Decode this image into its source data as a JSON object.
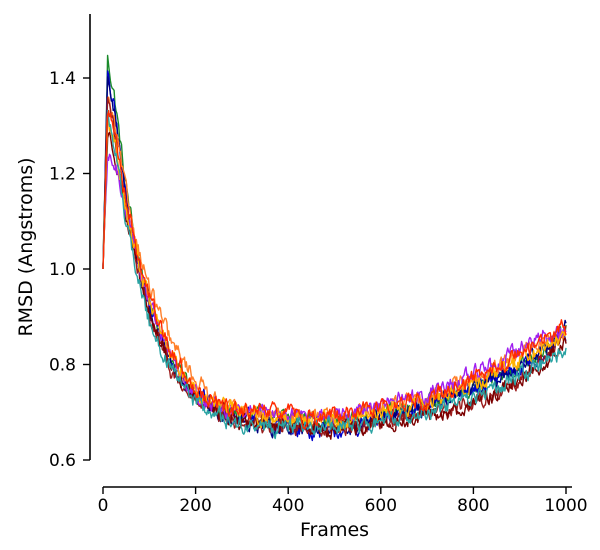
{
  "chart_data": {
    "type": "line",
    "title": "",
    "xlabel": "Frames",
    "ylabel": "RMSD (Angstroms)",
    "xlim": [
      0,
      1000
    ],
    "ylim": [
      0.6,
      1.54
    ],
    "xticks": [
      0,
      200,
      400,
      600,
      800,
      1000
    ],
    "xtick_labels": [
      "0",
      "200",
      "400",
      "600",
      "800",
      "1000"
    ],
    "yticks": [
      0.6,
      0.8,
      1.0,
      1.2,
      1.4
    ],
    "ytick_labels": [
      "0.6",
      "0.8",
      "1.0",
      "1.2",
      "1.4"
    ],
    "grid": false,
    "legend": "none",
    "x": [
      0,
      10,
      25,
      50,
      75,
      100,
      150,
      200,
      250,
      300,
      350,
      400,
      450,
      500,
      550,
      600,
      650,
      700,
      750,
      800,
      850,
      900,
      950,
      1000
    ],
    "series": [
      {
        "color": "#1a8a2a",
        "values": [
          1.0,
          1.44,
          1.36,
          1.17,
          1.03,
          0.93,
          0.81,
          0.74,
          0.7,
          0.69,
          0.69,
          0.69,
          0.69,
          0.68,
          0.69,
          0.7,
          0.71,
          0.72,
          0.73,
          0.75,
          0.77,
          0.8,
          0.83,
          0.87
        ]
      },
      {
        "color": "#0000cc",
        "values": [
          1.0,
          1.4,
          1.33,
          1.15,
          1.02,
          0.92,
          0.8,
          0.74,
          0.71,
          0.69,
          0.68,
          0.67,
          0.66,
          0.66,
          0.67,
          0.68,
          0.7,
          0.71,
          0.73,
          0.75,
          0.77,
          0.79,
          0.82,
          0.86
        ]
      },
      {
        "color": "#000080",
        "values": [
          1.0,
          1.41,
          1.32,
          1.14,
          1.01,
          0.91,
          0.79,
          0.73,
          0.7,
          0.68,
          0.67,
          0.67,
          0.67,
          0.66,
          0.67,
          0.69,
          0.7,
          0.71,
          0.73,
          0.75,
          0.77,
          0.8,
          0.83,
          0.88
        ]
      },
      {
        "color": "#ff7f2a",
        "values": [
          1.0,
          1.36,
          1.3,
          1.16,
          1.05,
          0.96,
          0.84,
          0.77,
          0.72,
          0.7,
          0.69,
          0.69,
          0.69,
          0.69,
          0.7,
          0.71,
          0.72,
          0.73,
          0.75,
          0.77,
          0.79,
          0.82,
          0.85,
          0.87
        ]
      },
      {
        "color": "#9b1c1c",
        "values": [
          1.0,
          1.37,
          1.28,
          1.12,
          1.0,
          0.9,
          0.78,
          0.72,
          0.69,
          0.68,
          0.67,
          0.67,
          0.67,
          0.67,
          0.67,
          0.68,
          0.69,
          0.7,
          0.71,
          0.72,
          0.74,
          0.77,
          0.81,
          0.86
        ]
      },
      {
        "color": "#7b0000",
        "values": [
          1.0,
          1.28,
          1.25,
          1.11,
          0.99,
          0.9,
          0.79,
          0.73,
          0.7,
          0.68,
          0.68,
          0.67,
          0.67,
          0.66,
          0.67,
          0.67,
          0.68,
          0.69,
          0.7,
          0.72,
          0.74,
          0.77,
          0.8,
          0.85
        ]
      },
      {
        "color": "#a020f0",
        "values": [
          1.0,
          1.23,
          1.22,
          1.13,
          1.02,
          0.93,
          0.81,
          0.74,
          0.71,
          0.7,
          0.7,
          0.7,
          0.69,
          0.69,
          0.7,
          0.71,
          0.73,
          0.74,
          0.76,
          0.78,
          0.8,
          0.83,
          0.86,
          0.87
        ]
      },
      {
        "color": "#ffb300",
        "values": [
          1.0,
          1.3,
          1.27,
          1.13,
          1.02,
          0.93,
          0.81,
          0.75,
          0.71,
          0.7,
          0.69,
          0.69,
          0.69,
          0.68,
          0.69,
          0.7,
          0.71,
          0.72,
          0.74,
          0.76,
          0.78,
          0.81,
          0.84,
          0.86
        ]
      },
      {
        "color": "#2aa3a3",
        "values": [
          1.0,
          1.32,
          1.26,
          1.1,
          0.98,
          0.89,
          0.78,
          0.72,
          0.69,
          0.67,
          0.67,
          0.67,
          0.67,
          0.67,
          0.67,
          0.68,
          0.69,
          0.7,
          0.72,
          0.73,
          0.75,
          0.78,
          0.8,
          0.83
        ]
      },
      {
        "color": "#ff2a00",
        "values": [
          1.0,
          1.33,
          1.29,
          1.15,
          1.03,
          0.94,
          0.82,
          0.75,
          0.71,
          0.7,
          0.7,
          0.7,
          0.69,
          0.69,
          0.7,
          0.71,
          0.72,
          0.73,
          0.75,
          0.77,
          0.79,
          0.82,
          0.85,
          0.88
        ]
      }
    ]
  }
}
